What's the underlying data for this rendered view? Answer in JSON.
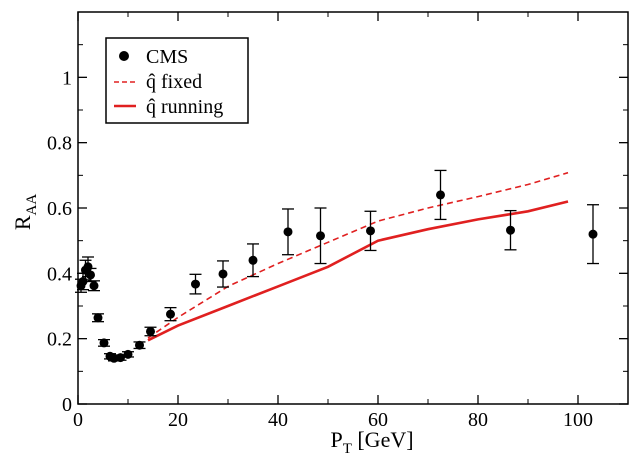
{
  "chart_data": {
    "type": "scatter",
    "title": "",
    "xlabel": {
      "main": "P",
      "sub": "T",
      "unit": " [GeV]"
    },
    "ylabel": {
      "main": "R",
      "sub": "AA"
    },
    "xlim": [
      0,
      110
    ],
    "ylim": [
      0,
      1.2
    ],
    "x_ticks": [
      0,
      20,
      40,
      60,
      80,
      100
    ],
    "y_ticks": [
      0,
      0.2,
      0.4,
      0.6,
      0.8,
      1
    ],
    "x_tick_labels": [
      "0",
      "20",
      "40",
      "60",
      "80",
      "100"
    ],
    "y_tick_labels": [
      "0",
      "0.2",
      "0.4",
      "0.6",
      "0.8",
      "1"
    ],
    "grid": false,
    "legend_placement": "top-left",
    "series": [
      {
        "name": "CMS",
        "kind": "points-with-error-bars",
        "color": "#000000",
        "points": [
          {
            "x": 0.6,
            "y": 0.362,
            "err": 0.02
          },
          {
            "x": 1.0,
            "y": 0.375,
            "err": 0.025
          },
          {
            "x": 1.5,
            "y": 0.41,
            "err": 0.03
          },
          {
            "x": 2.0,
            "y": 0.42,
            "err": 0.03
          },
          {
            "x": 2.5,
            "y": 0.395,
            "err": 0.02
          },
          {
            "x": 3.2,
            "y": 0.362,
            "err": 0.015
          },
          {
            "x": 4.0,
            "y": 0.264,
            "err": 0.012
          },
          {
            "x": 5.2,
            "y": 0.187,
            "err": 0.01
          },
          {
            "x": 6.4,
            "y": 0.146,
            "err": 0.008
          },
          {
            "x": 7.2,
            "y": 0.14,
            "err": 0.008
          },
          {
            "x": 8.5,
            "y": 0.142,
            "err": 0.008
          },
          {
            "x": 10.0,
            "y": 0.152,
            "err": 0.008
          },
          {
            "x": 12.3,
            "y": 0.18,
            "err": 0.01
          },
          {
            "x": 14.5,
            "y": 0.222,
            "err": 0.013
          },
          {
            "x": 18.5,
            "y": 0.275,
            "err": 0.02
          },
          {
            "x": 23.5,
            "y": 0.367,
            "err": 0.03
          },
          {
            "x": 29.0,
            "y": 0.398,
            "err": 0.04
          },
          {
            "x": 35.0,
            "y": 0.44,
            "err": 0.05
          },
          {
            "x": 42.0,
            "y": 0.527,
            "err": 0.07
          },
          {
            "x": 48.5,
            "y": 0.515,
            "err": 0.085
          },
          {
            "x": 58.5,
            "y": 0.53,
            "err": 0.06
          },
          {
            "x": 72.5,
            "y": 0.64,
            "err": 0.075
          },
          {
            "x": 86.5,
            "y": 0.532,
            "err": 0.06
          },
          {
            "x": 103.0,
            "y": 0.52,
            "err": 0.09
          }
        ]
      },
      {
        "name": "q̂ fixed",
        "kind": "line",
        "dash": true,
        "color": "#e02020",
        "x": [
          14,
          20,
          30,
          40,
          50,
          60,
          70,
          80,
          90,
          98
        ],
        "y": [
          0.202,
          0.265,
          0.36,
          0.43,
          0.495,
          0.56,
          0.6,
          0.635,
          0.672,
          0.708
        ]
      },
      {
        "name": "q̂ running",
        "kind": "line",
        "dash": false,
        "color": "#e02020",
        "x": [
          14,
          20,
          30,
          40,
          50,
          60,
          70,
          80,
          90,
          98
        ],
        "y": [
          0.195,
          0.24,
          0.3,
          0.36,
          0.42,
          0.5,
          0.535,
          0.565,
          0.59,
          0.62
        ]
      }
    ]
  }
}
